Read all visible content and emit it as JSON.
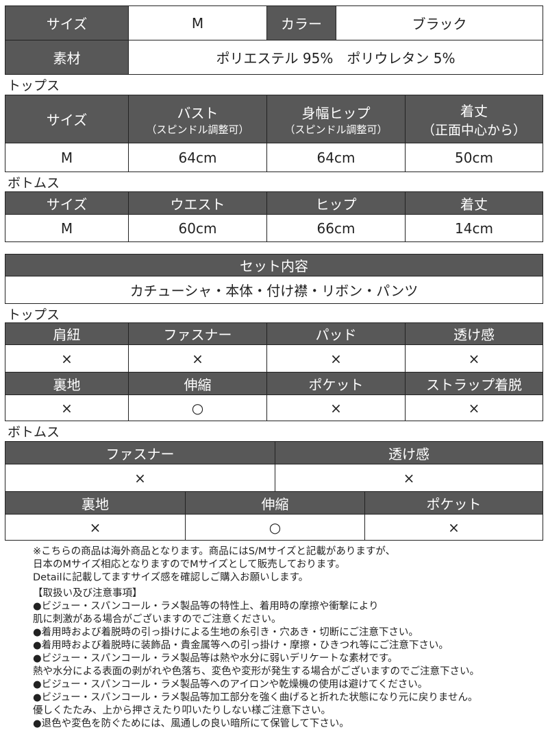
{
  "spec": {
    "size_label": "サイズ",
    "size_value": "M",
    "color_label": "カラー",
    "color_value": "ブラック",
    "material_label": "素材",
    "material_value": "ポリエステル 95%　ポリウレタン 5%"
  },
  "tops_size": {
    "section_label": "トップス",
    "headers": [
      {
        "main": "サイズ",
        "sub": ""
      },
      {
        "main": "バスト",
        "sub": "（スピンドル調整可）"
      },
      {
        "main": "身幅ヒップ",
        "sub": "（スピンドル調整可）"
      },
      {
        "main": "着丈",
        "sub": "（正面中心から）"
      }
    ],
    "row": [
      "M",
      "64cm",
      "64cm",
      "50cm"
    ]
  },
  "bottoms_size": {
    "section_label": "ボトムス",
    "headers": [
      "サイズ",
      "ウエスト",
      "ヒップ",
      "着丈"
    ],
    "row": [
      "M",
      "60cm",
      "66cm",
      "14cm"
    ]
  },
  "set_contents": {
    "header": "セット内容",
    "value": "カチューシャ・本体・付け襟・リボン・パンツ"
  },
  "tops_features": {
    "section_label": "トップス",
    "row1_headers": [
      "肩紐",
      "ファスナー",
      "パッド",
      "透け感"
    ],
    "row1_values": [
      "×",
      "×",
      "×",
      "×"
    ],
    "row2_headers": [
      "裏地",
      "伸縮",
      "ポケット",
      "ストラップ着脱"
    ],
    "row2_values": [
      "×",
      "○",
      "×",
      "×"
    ]
  },
  "bottoms_features": {
    "section_label": "ボトムス",
    "row1_headers": [
      "ファスナー",
      "透け感"
    ],
    "row1_values": [
      "×",
      "×"
    ],
    "row2_headers": [
      "裏地",
      "伸縮",
      "ポケット"
    ],
    "row2_values": [
      "×",
      "○",
      "×"
    ]
  },
  "notes": {
    "intro": [
      "※こちらの商品は海外商品となります。商品にはS/Mサイズと記載がありますが、",
      "日本のMサイズ相応となりますのでMサイズとして販売しております。",
      "Detailに記載してますサイズ感を確認しご購入お願いします。"
    ],
    "caution": [
      "【取扱い及び注意事項】",
      "●ビジュー・スパンコール・ラメ製品等の特性上、着用時の摩擦や衝撃により",
      "肌に刺激がある場合がございますのでご注意ください。",
      "●着用時および着脱時の引っ掛けによる生地の糸引き・穴あき・切断にご注意下さい。",
      "●着用時および着脱時に装飾品・貴金属等への引っ掛け・摩擦・ひきつれ等にご注意下さい。",
      "●ビジュー・スパンコール・ラメ製品等は熱や水分に弱いデリケートな素材です。",
      "熱や水分による表面の剥がれや色落ち、変色や変形が発生する場合がございますのでご注意下さい。",
      "●ビジュー・スパンコール・ラメ製品等へのアイロンや乾燥機の使用は避けてください。",
      "●ビジュー・スパンコール・ラメ製品等加工部分を強く曲げると折れた状態になり元に戻りません。",
      "優しくたたみ、上から押さえたり叩いたりしない様ご注意下さい。",
      "●退色や変色を防ぐためには、風通しの良い暗所にて保管して下さい。"
    ]
  },
  "colors": {
    "header_bg": "#585858",
    "header_text": "#ffffff",
    "border": "#222222"
  }
}
